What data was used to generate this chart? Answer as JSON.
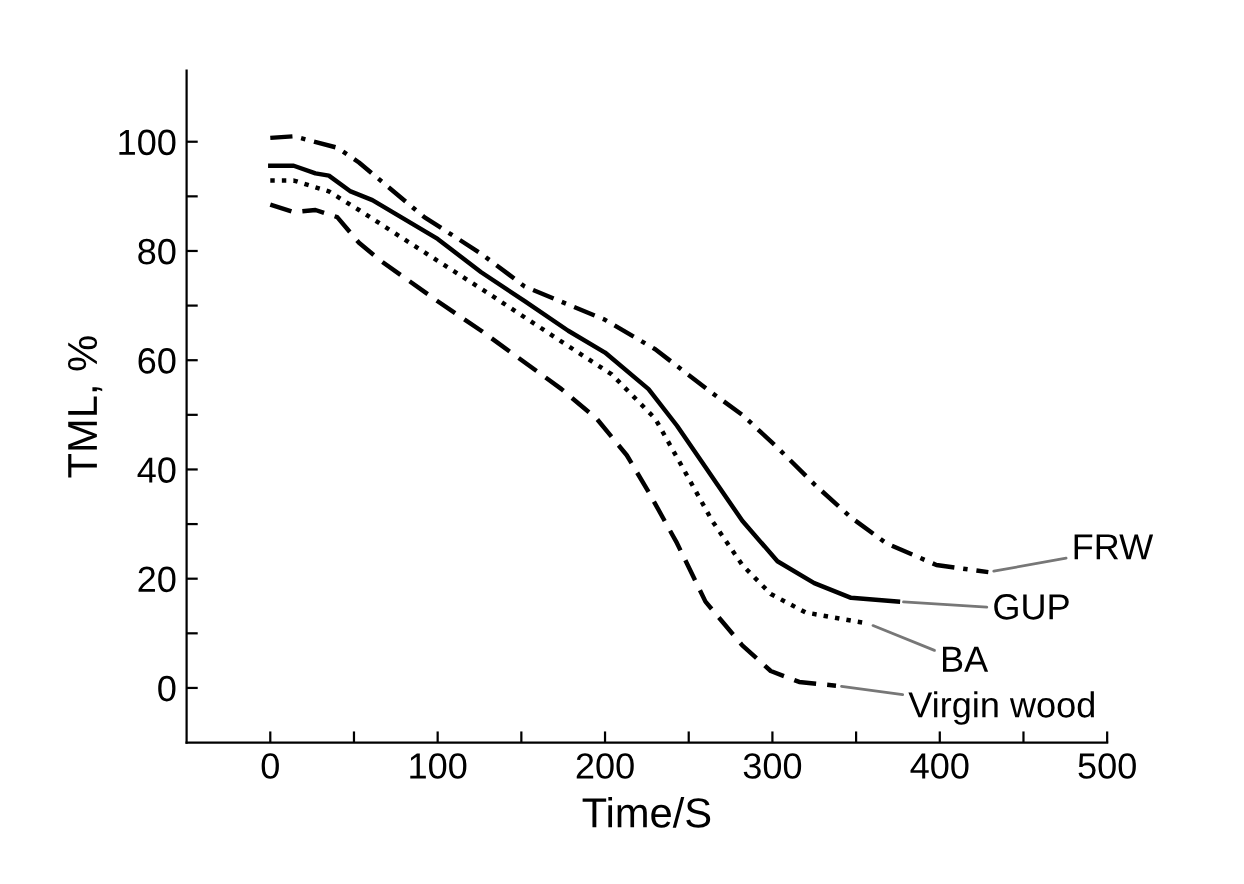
{
  "chart_data": {
    "type": "line",
    "xlabel": "Time/S",
    "ylabel": "TML, %",
    "xlim": [
      -50,
      500
    ],
    "xticks": [
      0,
      {
        "value": 50,
        "label": null
      },
      100,
      {
        "value": 150,
        "label": null
      },
      200,
      {
        "value": 250,
        "label": null
      },
      300,
      {
        "value": 350,
        "label": null
      },
      400,
      {
        "value": 450,
        "label": null
      },
      500
    ],
    "ylim": [
      -10,
      113
    ],
    "yticks": [
      0,
      {
        "value": 10,
        "label": null
      },
      20,
      {
        "value": 30,
        "label": null
      },
      40,
      {
        "value": 50,
        "label": null
      },
      60,
      {
        "value": 70,
        "label": null
      },
      80,
      {
        "value": 90,
        "label": null
      },
      100
    ],
    "grid": false,
    "legend": false,
    "marker": "none",
    "series": [
      {
        "name": "FRW",
        "color": "#000000",
        "line_style": "dashdot",
        "x": [
          0,
          14,
          40,
          53,
          92,
          126,
          152,
          200,
          230,
          264,
          282,
          303,
          325,
          347,
          368,
          398,
          429
        ],
        "values": [
          100.7,
          101,
          98.9,
          96.2,
          86.2,
          79.5,
          73.5,
          67.4,
          62,
          54,
          50,
          44,
          37.3,
          31.2,
          26.5,
          22.5,
          21.2
        ]
      },
      {
        "name": "GUP",
        "color": "#000000",
        "line_style": "solid",
        "x": [
          0,
          14,
          27,
          35,
          48,
          61,
          100,
          126,
          152,
          178,
          200,
          226,
          243,
          258,
          267,
          282,
          303,
          325,
          347,
          375
        ],
        "values": [
          95.6,
          95.6,
          94.2,
          93.8,
          90.9,
          89.3,
          82.2,
          76.1,
          70.8,
          65.4,
          61.4,
          54.7,
          48,
          41.3,
          37.3,
          30.6,
          23.2,
          19.2,
          16.5,
          15.8
        ]
      },
      {
        "name": "BA",
        "color": "#000000",
        "line_style": "dotted",
        "x": [
          0,
          14,
          35,
          53,
          100,
          131,
          174,
          204,
          230,
          247,
          264,
          282,
          299,
          320,
          357
        ],
        "values": [
          92.9,
          92.9,
          90.9,
          87.5,
          78.2,
          72.1,
          63.4,
          57.4,
          49.3,
          40,
          30.6,
          22.5,
          17.2,
          13.8,
          11.8
        ]
      },
      {
        "name": "Virgin wood",
        "color": "#000000",
        "line_style": "dashed",
        "x": [
          0,
          14,
          27,
          40,
          53,
          66,
          100,
          126,
          174,
          195,
          213,
          226,
          243,
          260,
          282,
          299,
          316,
          338
        ],
        "values": [
          88.5,
          87.1,
          87.5,
          86.2,
          81.5,
          78.2,
          70.8,
          65.4,
          54.7,
          49.3,
          42.6,
          35.9,
          26.5,
          15.8,
          7.8,
          3.1,
          1.1,
          0.4
        ]
      }
    ]
  }
}
